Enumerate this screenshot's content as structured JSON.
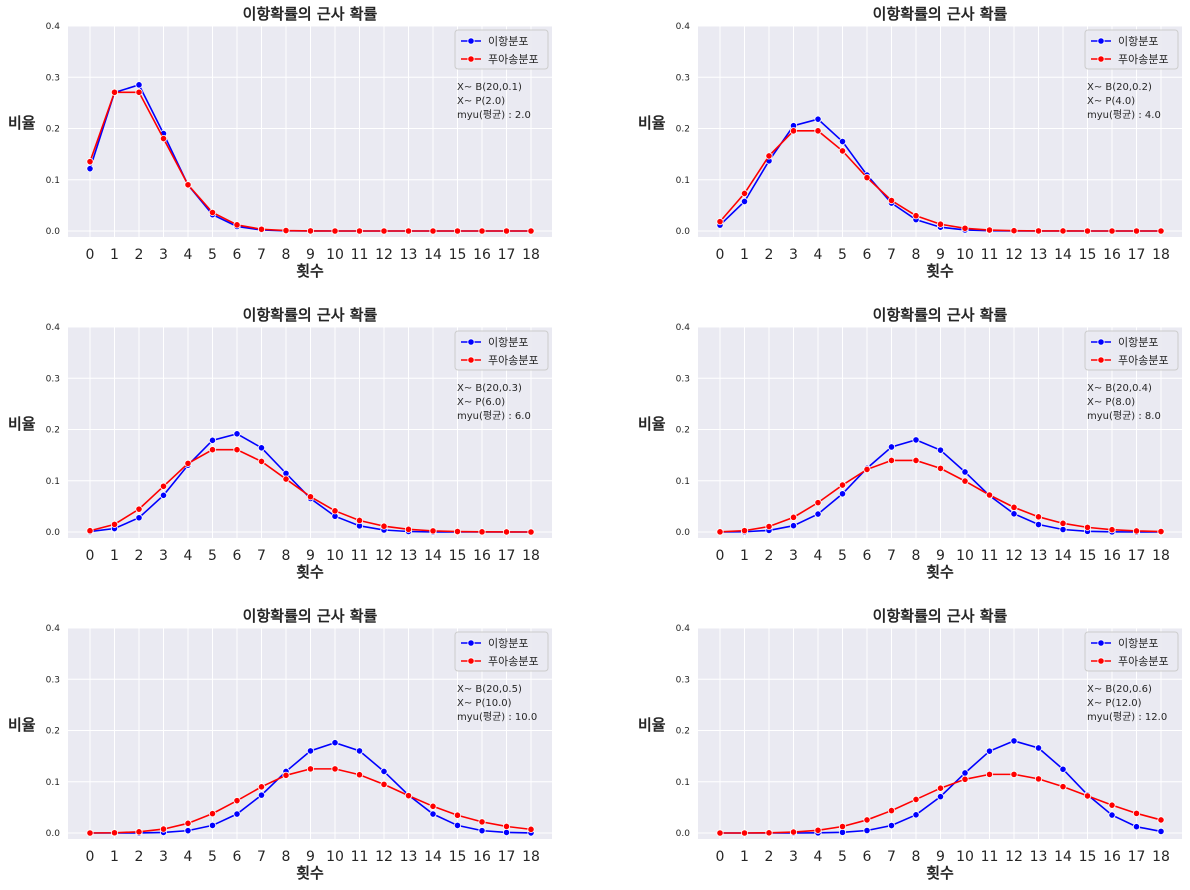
{
  "chart_data": [
    {
      "type": "line",
      "title": "이항확률의 근사 확률",
      "xlabel": "횟수",
      "ylabel": "비율",
      "x": [
        0,
        1,
        2,
        3,
        4,
        5,
        6,
        7,
        8,
        9,
        10,
        11,
        12,
        13,
        14,
        15,
        16,
        17,
        18
      ],
      "xticks": [
        "0",
        "1",
        "2",
        "3",
        "4",
        "5",
        "6",
        "7",
        "8",
        "9",
        "10",
        "11",
        "12",
        "13",
        "14",
        "15",
        "16",
        "17",
        "18"
      ],
      "ylim": [
        0,
        0.4
      ],
      "yticks": [
        "0.0",
        "0.1",
        "0.2",
        "0.3",
        "0.4"
      ],
      "grid": true,
      "legend": "top-right",
      "annotation": [
        "X~ B(20,0.1)",
        "X~ P(2.0)",
        " myu(평균) : 2.0"
      ],
      "series": [
        {
          "name": "이항분포",
          "color": "#0000ff",
          "values": [
            0.1216,
            0.2702,
            0.2852,
            0.1901,
            0.0898,
            0.0319,
            0.0089,
            0.002,
            0.0004,
            0.0001,
            0,
            0,
            0,
            0,
            0,
            0,
            0,
            0,
            0
          ]
        },
        {
          "name": "푸아송분포",
          "color": "#ff0000",
          "values": [
            0.1353,
            0.2707,
            0.2707,
            0.1804,
            0.0902,
            0.0361,
            0.012,
            0.0034,
            0.0009,
            0.0002,
            0,
            0,
            0,
            0,
            0,
            0,
            0,
            0,
            0
          ]
        }
      ]
    },
    {
      "type": "line",
      "title": "이항확률의 근사 확률",
      "xlabel": "횟수",
      "ylabel": "비율",
      "x": [
        0,
        1,
        2,
        3,
        4,
        5,
        6,
        7,
        8,
        9,
        10,
        11,
        12,
        13,
        14,
        15,
        16,
        17,
        18
      ],
      "xticks": [
        "0",
        "1",
        "2",
        "3",
        "4",
        "5",
        "6",
        "7",
        "8",
        "9",
        "10",
        "11",
        "12",
        "13",
        "14",
        "15",
        "16",
        "17",
        "18"
      ],
      "ylim": [
        0,
        0.4
      ],
      "yticks": [
        "0.0",
        "0.1",
        "0.2",
        "0.3",
        "0.4"
      ],
      "grid": true,
      "legend": "top-right",
      "annotation": [
        "X~ B(20,0.2)",
        "X~ P(4.0)",
        " myu(평균) : 4.0"
      ],
      "series": [
        {
          "name": "이항분포",
          "color": "#0000ff",
          "values": [
            0.0115,
            0.0576,
            0.1369,
            0.2054,
            0.2182,
            0.1746,
            0.1091,
            0.0545,
            0.0222,
            0.0074,
            0.002,
            0.0005,
            0.0001,
            0,
            0,
            0,
            0,
            0,
            0
          ]
        },
        {
          "name": "푸아송분포",
          "color": "#ff0000",
          "values": [
            0.0183,
            0.0733,
            0.1465,
            0.1954,
            0.1954,
            0.1563,
            0.1042,
            0.0595,
            0.0298,
            0.0132,
            0.0053,
            0.0019,
            0.0006,
            0.0002,
            0.0001,
            0,
            0,
            0,
            0
          ]
        }
      ]
    },
    {
      "type": "line",
      "title": "이항확률의 근사 확률",
      "xlabel": "횟수",
      "ylabel": "비율",
      "x": [
        0,
        1,
        2,
        3,
        4,
        5,
        6,
        7,
        8,
        9,
        10,
        11,
        12,
        13,
        14,
        15,
        16,
        17,
        18
      ],
      "xticks": [
        "0",
        "1",
        "2",
        "3",
        "4",
        "5",
        "6",
        "7",
        "8",
        "9",
        "10",
        "11",
        "12",
        "13",
        "14",
        "15",
        "16",
        "17",
        "18"
      ],
      "ylim": [
        0,
        0.4
      ],
      "yticks": [
        "0.0",
        "0.1",
        "0.2",
        "0.3",
        "0.4"
      ],
      "grid": true,
      "legend": "top-right",
      "annotation": [
        "X~ B(20,0.3)",
        "X~ P(6.0)",
        " myu(평균) : 6.0"
      ],
      "series": [
        {
          "name": "이항분포",
          "color": "#0000ff",
          "values": [
            0.0008,
            0.0068,
            0.0278,
            0.0716,
            0.1304,
            0.1789,
            0.1916,
            0.1643,
            0.1144,
            0.0654,
            0.0308,
            0.012,
            0.0039,
            0.001,
            0.0002,
            0,
            0,
            0,
            0
          ]
        },
        {
          "name": "푸아송분포",
          "color": "#ff0000",
          "values": [
            0.0025,
            0.0149,
            0.0446,
            0.0892,
            0.1339,
            0.1606,
            0.1606,
            0.1377,
            0.1033,
            0.0688,
            0.0413,
            0.0225,
            0.0113,
            0.0052,
            0.0022,
            0.0009,
            0.0003,
            0.0001,
            0
          ]
        }
      ]
    },
    {
      "type": "line",
      "title": "이항확률의 근사 확률",
      "xlabel": "횟수",
      "ylabel": "비율",
      "x": [
        0,
        1,
        2,
        3,
        4,
        5,
        6,
        7,
        8,
        9,
        10,
        11,
        12,
        13,
        14,
        15,
        16,
        17,
        18
      ],
      "xticks": [
        "0",
        "1",
        "2",
        "3",
        "4",
        "5",
        "6",
        "7",
        "8",
        "9",
        "10",
        "11",
        "12",
        "13",
        "14",
        "15",
        "16",
        "17",
        "18"
      ],
      "ylim": [
        0,
        0.4
      ],
      "yticks": [
        "0.0",
        "0.1",
        "0.2",
        "0.3",
        "0.4"
      ],
      "grid": true,
      "legend": "top-right",
      "annotation": [
        "X~ B(20,0.4)",
        "X~ P(8.0)",
        " myu(평균) : 8.0"
      ],
      "series": [
        {
          "name": "이항분포",
          "color": "#0000ff",
          "values": [
            0,
            0.0005,
            0.0031,
            0.0123,
            0.035,
            0.0746,
            0.1244,
            0.1659,
            0.1797,
            0.1597,
            0.1171,
            0.071,
            0.0355,
            0.0146,
            0.0049,
            0.0013,
            0.0003,
            0,
            0
          ]
        },
        {
          "name": "푸아송분포",
          "color": "#ff0000",
          "values": [
            0.0003,
            0.0027,
            0.0107,
            0.0286,
            0.0573,
            0.0916,
            0.1221,
            0.1396,
            0.1396,
            0.1241,
            0.0993,
            0.0722,
            0.0481,
            0.0296,
            0.0169,
            0.009,
            0.0045,
            0.0021,
            0.0009
          ]
        }
      ]
    },
    {
      "type": "line",
      "title": "이항확률의 근사 확률",
      "xlabel": "횟수",
      "ylabel": "비율",
      "x": [
        0,
        1,
        2,
        3,
        4,
        5,
        6,
        7,
        8,
        9,
        10,
        11,
        12,
        13,
        14,
        15,
        16,
        17,
        18
      ],
      "xticks": [
        "0",
        "1",
        "2",
        "3",
        "4",
        "5",
        "6",
        "7",
        "8",
        "9",
        "10",
        "11",
        "12",
        "13",
        "14",
        "15",
        "16",
        "17",
        "18"
      ],
      "ylim": [
        0,
        0.4
      ],
      "yticks": [
        "0.0",
        "0.1",
        "0.2",
        "0.3",
        "0.4"
      ],
      "grid": true,
      "legend": "top-right",
      "annotation": [
        "X~ B(20,0.5)",
        "X~ P(10.0)",
        " myu(평균) : 10.0"
      ],
      "series": [
        {
          "name": "이항분포",
          "color": "#0000ff",
          "values": [
            0,
            0,
            0.0002,
            0.0011,
            0.0046,
            0.0148,
            0.037,
            0.0739,
            0.1201,
            0.1602,
            0.1762,
            0.1602,
            0.1201,
            0.0739,
            0.037,
            0.0148,
            0.0046,
            0.0011,
            0.0002
          ]
        },
        {
          "name": "푸아송분포",
          "color": "#ff0000",
          "values": [
            0,
            0.0005,
            0.0023,
            0.0076,
            0.0189,
            0.0378,
            0.0631,
            0.0901,
            0.1126,
            0.1251,
            0.1251,
            0.1137,
            0.0948,
            0.0729,
            0.0521,
            0.0347,
            0.0217,
            0.0128,
            0.0071
          ]
        }
      ]
    },
    {
      "type": "line",
      "title": "이항확률의 근사 확률",
      "xlabel": "횟수",
      "ylabel": "비율",
      "x": [
        0,
        1,
        2,
        3,
        4,
        5,
        6,
        7,
        8,
        9,
        10,
        11,
        12,
        13,
        14,
        15,
        16,
        17,
        18
      ],
      "xticks": [
        "0",
        "1",
        "2",
        "3",
        "4",
        "5",
        "6",
        "7",
        "8",
        "9",
        "10",
        "11",
        "12",
        "13",
        "14",
        "15",
        "16",
        "17",
        "18"
      ],
      "ylim": [
        0,
        0.4
      ],
      "yticks": [
        "0.0",
        "0.1",
        "0.2",
        "0.3",
        "0.4"
      ],
      "grid": true,
      "legend": "top-right",
      "annotation": [
        "X~ B(20,0.6)",
        "X~ P(12.0)",
        " myu(평균) : 12.0"
      ],
      "series": [
        {
          "name": "이항분포",
          "color": "#0000ff",
          "values": [
            0,
            0,
            0,
            0,
            0.0003,
            0.0013,
            0.0049,
            0.0146,
            0.0355,
            0.071,
            0.1171,
            0.1597,
            0.1797,
            0.1659,
            0.1244,
            0.0746,
            0.035,
            0.0123,
            0.0031
          ]
        },
        {
          "name": "푸아송분포",
          "color": "#ff0000",
          "values": [
            0,
            0,
            0.0004,
            0.0018,
            0.0053,
            0.0127,
            0.0255,
            0.0437,
            0.0655,
            0.0874,
            0.1048,
            0.1144,
            0.1144,
            0.1056,
            0.0905,
            0.0724,
            0.0543,
            0.0383,
            0.0255
          ]
        }
      ]
    }
  ]
}
